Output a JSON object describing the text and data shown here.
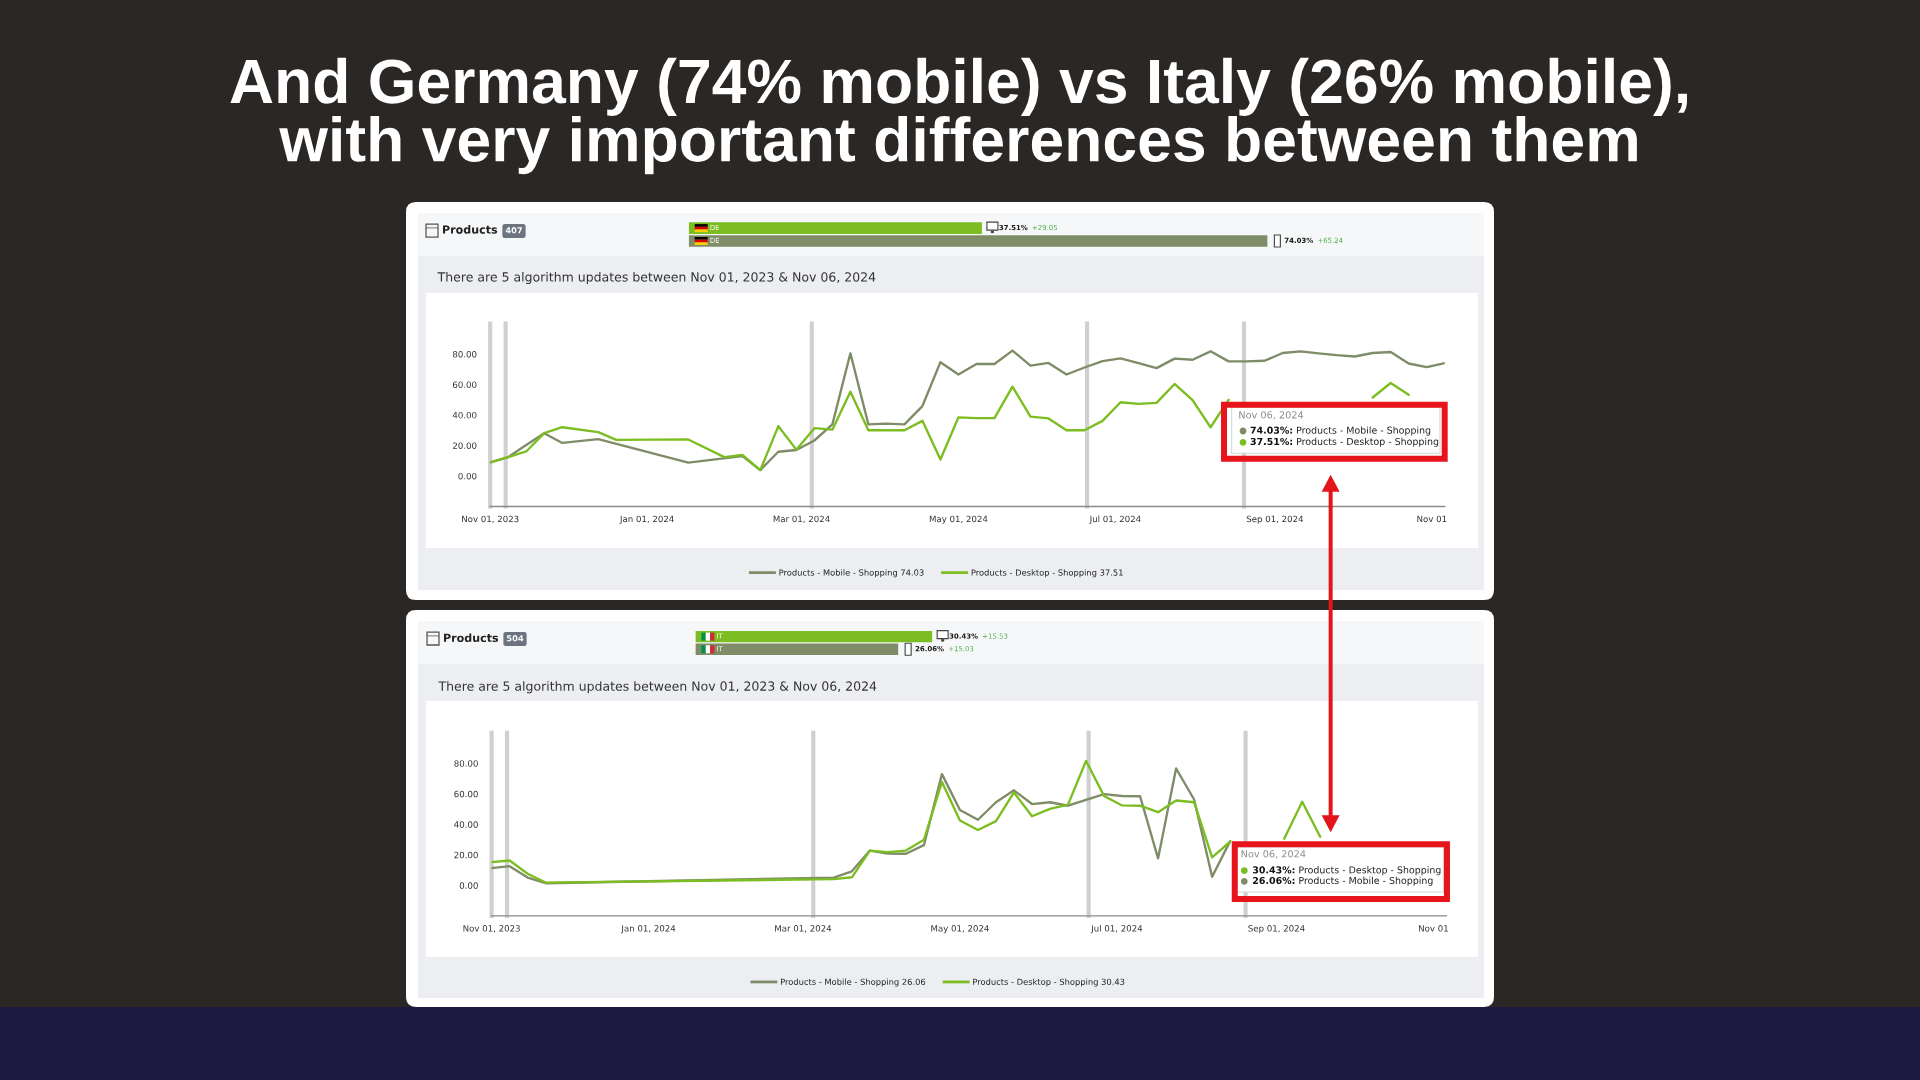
{
  "chart_data": [
    {
      "type": "bar",
      "orientation": "horizontal",
      "title": "And Germany (74% mobile) vs Italy (26% mobile),\nwith very important differences between them",
      "categories": [
        "DE",
        "DE"
      ],
      "values": [
        37.51,
        74.03
      ],
      "colors": [
        "#7cbd21",
        "#7f8c68"
      ],
      "value_labels": [
        "37.51%",
        "74.03%"
      ],
      "annotations": [
        "+29.05",
        "+65.24"
      ]
    },
    {
      "type": "line",
      "title": "Products",
      "subtitle": "There are 5 algorithm updates between Nov 01, 2023 & Nov 06, 2024",
      "series": [
        {
          "name": "Products - Mobile - Shopping 74.03",
          "color": "#7f8c68",
          "x": [
            "2023-11-01",
            "2023-11-08",
            "2023-11-15",
            "2023-11-22",
            "2023-11-29",
            "2023-12-13",
            "2024-01-17",
            "2024-02-07",
            "2024-02-14",
            "2024-02-21",
            "2024-02-28",
            "2024-03-06",
            "2024-03-13",
            "2024-03-20",
            "2024-03-27",
            "2024-04-03",
            "2024-04-10",
            "2024-04-17",
            "2024-04-24",
            "2024-05-01",
            "2024-05-08",
            "2024-05-15",
            "2024-05-22",
            "2024-05-29",
            "2024-06-05",
            "2024-06-12",
            "2024-06-19",
            "2024-06-26",
            "2024-07-03",
            "2024-07-10",
            "2024-07-17",
            "2024-07-24",
            "2024-07-31",
            "2024-08-07",
            "2024-08-14",
            "2024-08-21",
            "2024-08-28",
            "2024-09-04",
            "2024-09-11",
            "2024-09-18",
            "2024-09-25",
            "2024-10-02",
            "2024-10-09",
            "2024-10-16",
            "2024-10-23",
            "2024-10-30",
            "2024-11-06"
          ],
          "values": [
            9.0,
            12.4,
            20.3,
            28.1,
            21.7,
            24.2,
            8.8,
            13.1,
            3.9,
            15.9,
            17.1,
            23.3,
            33.9,
            80.5,
            33.9,
            34.4,
            33.9,
            45.9,
            74.7,
            66.6,
            73.5,
            73.5,
            82.3,
            72.4,
            74.2,
            66.6,
            71.2,
            75.4,
            77.2,
            74.0,
            70.8,
            77.0,
            76.3,
            81.8,
            75.2,
            75.2,
            75.6,
            80.7,
            81.8,
            80.5,
            79.3,
            78.4,
            80.7,
            81.4,
            73.8,
            71.5,
            74.03
          ]
        },
        {
          "name": "Products - Desktop - Shopping 37.51",
          "color": "#7cbd21",
          "x": [
            "2023-11-01",
            "2023-11-08",
            "2023-11-15",
            "2023-11-22",
            "2023-11-29",
            "2023-12-13",
            "2023-12-20",
            "2024-01-17",
            "2024-01-31",
            "2024-02-07",
            "2024-02-14",
            "2024-02-21",
            "2024-02-28",
            "2024-03-06",
            "2024-03-13",
            "2024-03-20",
            "2024-03-27",
            "2024-04-03",
            "2024-04-10",
            "2024-04-17",
            "2024-04-24",
            "2024-05-01",
            "2024-05-08",
            "2024-05-15",
            "2024-05-22",
            "2024-05-29",
            "2024-06-05",
            "2024-06-12",
            "2024-06-19",
            "2024-06-26",
            "2024-07-03",
            "2024-07-10",
            "2024-07-17",
            "2024-07-24",
            "2024-07-31",
            "2024-08-07",
            "2024-08-14",
            "2024-08-21",
            "2024-08-28",
            "2024-09-04",
            "2024-09-11",
            "2024-09-18",
            "2024-09-25",
            "2024-10-02",
            "2024-10-09",
            "2024-10-16",
            "2024-10-23"
          ],
          "values": [
            9.0,
            12.4,
            16.1,
            28.1,
            32.0,
            28.8,
            23.7,
            24.0,
            12.4,
            13.8,
            3.9,
            32.7,
            17.3,
            31.4,
            30.4,
            55.3,
            30.0,
            30.0,
            30.0,
            36.2,
            10.8,
            38.5,
            38.0,
            38.0,
            58.6,
            39.0,
            37.8,
            30.0,
            30.0,
            36.2,
            48.4,
            47.3,
            48.0,
            60.4,
            49.8,
            32.0,
            50.0,
            null,
            null,
            null,
            null,
            null,
            null,
            null,
            51.5,
            61.0,
            53.3
          ]
        }
      ],
      "xlim": [
        "2023-11-01",
        "2024-11-06"
      ],
      "xticks": [
        {
          "value": "2023-11-01",
          "label": "Nov 01, 2023"
        },
        {
          "value": "2024-01-01",
          "label": "Jan 01, 2024"
        },
        {
          "value": "2024-03-01",
          "label": "Mar 01, 2024"
        },
        {
          "value": "2024-05-01",
          "label": "May 01, 2024"
        },
        {
          "value": "2024-07-01",
          "label": "Jul 01, 2024"
        },
        {
          "value": "2024-09-01",
          "label": "Sep 01, 2024"
        },
        {
          "value": "2024-11-01",
          "label": "Nov 01"
        }
      ],
      "ylim": [
        -20,
        100
      ],
      "yticks": [
        {
          "value": 0,
          "label": "0.00"
        },
        {
          "value": 20,
          "label": "20.00"
        },
        {
          "value": 40,
          "label": "40.00"
        },
        {
          "value": 60,
          "label": "60.00"
        },
        {
          "value": 80,
          "label": "80.00"
        }
      ],
      "ref_lines": [
        {
          "axis": "x",
          "value": "2023-11-01",
          "color": "#d0d0d0"
        },
        {
          "axis": "x",
          "value": "2023-11-07",
          "color": "#d0d0d0"
        },
        {
          "axis": "x",
          "value": "2024-03-05",
          "color": "#d0d0d0"
        },
        {
          "axis": "x",
          "value": "2024-06-20",
          "color": "#d0d0d0"
        },
        {
          "axis": "x",
          "value": "2024-08-20",
          "color": "#d0d0d0"
        }
      ],
      "legend": "bottom",
      "annotations": [
        "407",
        "Nov 06, 2024",
        "74.03%: Products - Mobile - Shopping",
        "37.51%: Products - Desktop - Shopping"
      ]
    },
    {
      "type": "bar",
      "orientation": "horizontal",
      "categories": [
        "IT",
        "IT"
      ],
      "values": [
        30.43,
        26.06
      ],
      "colors": [
        "#7cbd21",
        "#7f8c68"
      ],
      "value_labels": [
        "30.43%",
        "26.06%"
      ],
      "annotations": [
        "+15.53",
        "+15.03"
      ]
    },
    {
      "type": "line",
      "title": "Products",
      "subtitle": "There are 5 algorithm updates between Nov 01, 2023 & Nov 06, 2024",
      "series": [
        {
          "name": "Products - Mobile - Shopping 26.06",
          "color": "#7f8c68",
          "x": [
            "2023-11-01",
            "2023-11-08",
            "2023-11-15",
            "2023-11-22",
            "2024-03-13",
            "2024-03-20",
            "2024-03-27",
            "2024-04-03",
            "2024-04-10",
            "2024-04-17",
            "2024-04-24",
            "2024-05-01",
            "2024-05-08",
            "2024-05-15",
            "2024-05-22",
            "2024-05-29",
            "2024-06-05",
            "2024-06-12",
            "2024-06-19",
            "2024-06-26",
            "2024-07-03",
            "2024-07-10",
            "2024-07-17",
            "2024-07-24",
            "2024-07-31",
            "2024-08-07",
            "2024-08-14"
          ],
          "values": [
            11.3,
            12.6,
            5.1,
            1.4,
            5.1,
            9.2,
            22.8,
            20.9,
            20.7,
            26.4,
            72.9,
            49.4,
            43.0,
            54.5,
            62.3,
            53.3,
            54.5,
            52.2,
            56.1,
            59.8,
            58.6,
            58.4,
            17.7,
            76.6,
            56.3,
            5.7,
            29.0
          ]
        },
        {
          "name": "Products - Desktop - Shopping 30.43",
          "color": "#7cbd21",
          "x": [
            "2023-11-01",
            "2023-11-08",
            "2023-11-15",
            "2023-11-22",
            "2024-03-13",
            "2024-03-20",
            "2024-03-27",
            "2024-04-03",
            "2024-04-10",
            "2024-04-17",
            "2024-04-24",
            "2024-05-01",
            "2024-05-08",
            "2024-05-15",
            "2024-05-22",
            "2024-05-29",
            "2024-06-05",
            "2024-06-12",
            "2024-06-19",
            "2024-06-26",
            "2024-07-03",
            "2024-07-10",
            "2024-07-17",
            "2024-07-24",
            "2024-07-31",
            "2024-08-07",
            "2024-08-14",
            "2024-08-21",
            "2024-08-28",
            "2024-09-04",
            "2024-09-11",
            "2024-09-18"
          ],
          "values": [
            15.2,
            16.3,
            7.6,
            1.8,
            4.1,
            5.3,
            22.8,
            21.8,
            22.8,
            29.9,
            67.8,
            42.5,
            36.3,
            42.1,
            60.9,
            45.3,
            50.1,
            52.9,
            81.6,
            58.6,
            52.4,
            52.2,
            48.0,
            55.6,
            54.5,
            18.4,
            28.6,
            null,
            null,
            30.6,
            54.8,
            31.9
          ]
        }
      ],
      "xlim": [
        "2023-11-01",
        "2024-11-06"
      ],
      "xticks": [
        {
          "value": "2023-11-01",
          "label": "Nov 01, 2023"
        },
        {
          "value": "2024-01-01",
          "label": "Jan 01, 2024"
        },
        {
          "value": "2024-03-01",
          "label": "Mar 01, 2024"
        },
        {
          "value": "2024-05-01",
          "label": "May 01, 2024"
        },
        {
          "value": "2024-07-01",
          "label": "Jul 01, 2024"
        },
        {
          "value": "2024-09-01",
          "label": "Sep 01, 2024"
        },
        {
          "value": "2024-11-01",
          "label": "Nov 01"
        }
      ],
      "ylim": [
        -20,
        100
      ],
      "yticks": [
        {
          "value": 0,
          "label": "0.00"
        },
        {
          "value": 20,
          "label": "20.00"
        },
        {
          "value": 40,
          "label": "40.00"
        },
        {
          "value": 60,
          "label": "60.00"
        },
        {
          "value": 80,
          "label": "80.00"
        }
      ],
      "ref_lines": [
        {
          "axis": "x",
          "value": "2023-11-01",
          "color": "#d0d0d0"
        },
        {
          "axis": "x",
          "value": "2023-11-07",
          "color": "#d0d0d0"
        },
        {
          "axis": "x",
          "value": "2024-03-05",
          "color": "#d0d0d0"
        },
        {
          "axis": "x",
          "value": "2024-06-20",
          "color": "#d0d0d0"
        },
        {
          "axis": "x",
          "value": "2024-08-20",
          "color": "#d0d0d0"
        }
      ],
      "legend": "bottom",
      "annotations": [
        "504",
        "Nov 06, 2024",
        "30.43%: Products - Desktop - Shopping",
        "26.06%: Products - Mobile - Shopping"
      ]
    }
  ]
}
